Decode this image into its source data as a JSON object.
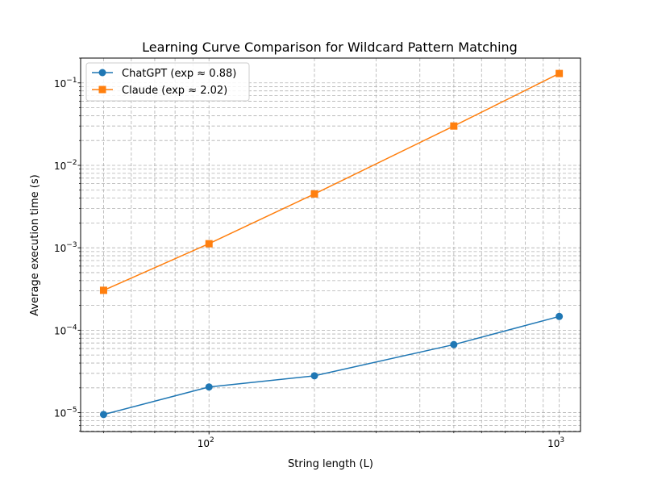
{
  "chart_data": {
    "type": "line",
    "title": "Learning Curve Comparison for Wildcard Pattern Matching",
    "xlabel": "String length (L)",
    "ylabel": "Average execution time (s)",
    "xscale": "log",
    "yscale": "log",
    "xlim": [
      43,
      1150
    ],
    "ylim": [
      5.9e-06,
      0.2
    ],
    "grid": true,
    "legend_position": "top-left",
    "x": [
      50,
      100,
      200,
      500,
      1000
    ],
    "series": [
      {
        "name": "ChatGPT (exp ≈ 0.88)",
        "color": "#1f77b4",
        "marker": "circle",
        "values": [
          9.5e-06,
          2.05e-05,
          2.8e-05,
          6.7e-05,
          0.000147
        ]
      },
      {
        "name": "Claude (exp ≈ 2.02)",
        "color": "#ff7f0e",
        "marker": "square",
        "values": [
          0.000305,
          0.00112,
          0.0045,
          0.03,
          0.13
        ]
      }
    ],
    "x_ticks": [
      {
        "value": 100,
        "base": "10",
        "exp": "2"
      },
      {
        "value": 1000,
        "base": "10",
        "exp": "3"
      }
    ],
    "y_ticks": [
      {
        "value": 1e-05,
        "base": "10",
        "exp": "−5"
      },
      {
        "value": 0.0001,
        "base": "10",
        "exp": "−4"
      },
      {
        "value": 0.001,
        "base": "10",
        "exp": "−3"
      },
      {
        "value": 0.01,
        "base": "10",
        "exp": "−2"
      },
      {
        "value": 0.1,
        "base": "10",
        "exp": "−1"
      }
    ]
  }
}
